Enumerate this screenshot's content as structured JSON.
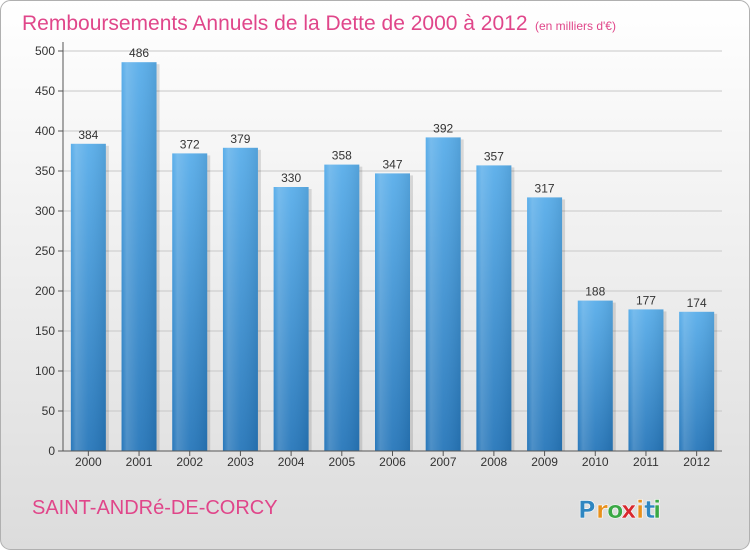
{
  "chart_data": {
    "type": "bar",
    "title": "Remboursements Annuels de la Dette de 2000 à 2012",
    "unit_note": "(en milliers d'€)",
    "categories": [
      "2000",
      "2001",
      "2002",
      "2003",
      "2004",
      "2005",
      "2006",
      "2007",
      "2008",
      "2009",
      "2010",
      "2011",
      "2012"
    ],
    "values": [
      384,
      486,
      372,
      379,
      330,
      358,
      347,
      392,
      357,
      317,
      188,
      177,
      174
    ],
    "ylim": [
      0,
      500
    ],
    "yticks": [
      0,
      50,
      100,
      150,
      200,
      250,
      300,
      350,
      400,
      450,
      500
    ],
    "grid": true,
    "xlabel": "",
    "ylabel": ""
  },
  "location": "SAINT-ANDRé-DE-CORCY",
  "brand": {
    "letters": [
      "P",
      "r",
      "o",
      "x",
      "i",
      "t",
      "i"
    ],
    "colors": [
      "#2e86c1",
      "#e8901c",
      "#3aa845",
      "#d8282e",
      "#e8901c",
      "#2e86c1",
      "#3aa845"
    ]
  },
  "colors": {
    "title": "#e0468a",
    "location": "#e0468a",
    "bar_light": "#5aaeea",
    "bar_dark": "#2b7fc0",
    "background_top": "#ffffff",
    "background_bottom": "#e0e0e0"
  }
}
